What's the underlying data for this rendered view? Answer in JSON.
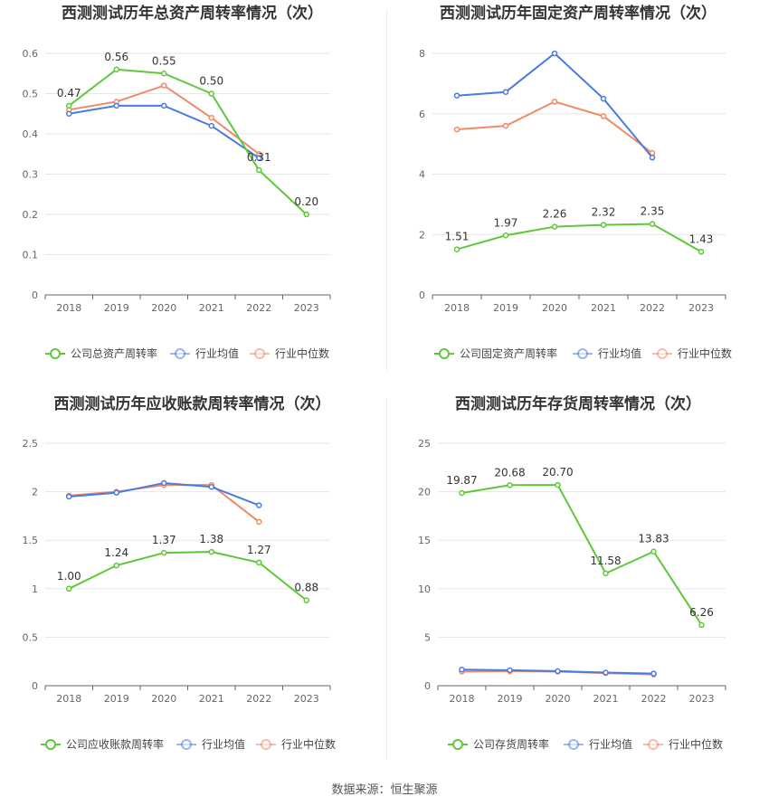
{
  "colors": {
    "company": "#5ec83a",
    "avg": "#4a7be0",
    "median": "#f08a66"
  },
  "legend": {
    "avg": "行业均值",
    "median": "行业中位数"
  },
  "source": "数据来源：恒生聚源",
  "chart_data": [
    {
      "type": "line",
      "title": "西测测试历年总资产周转率情况（次）",
      "legend_company": "公司总资产周转率",
      "x": [
        "2018",
        "2019",
        "2020",
        "2021",
        "2022",
        "2023"
      ],
      "ylim": [
        0,
        0.6
      ],
      "yticks": [
        "0",
        "0.1",
        "0.2",
        "0.3",
        "0.4",
        "0.5",
        "0.6"
      ],
      "series": [
        {
          "name": "公司总资产周转率",
          "values": [
            0.47,
            0.56,
            0.55,
            0.5,
            0.31,
            0.2
          ],
          "labels": [
            "0.47",
            "0.56",
            "0.55",
            "0.50",
            "0.31",
            "0.20"
          ]
        },
        {
          "name": "行业均值",
          "values": [
            0.45,
            0.47,
            0.47,
            0.42,
            0.34,
            null
          ]
        },
        {
          "name": "行业中位数",
          "values": [
            0.46,
            0.48,
            0.52,
            0.44,
            0.35,
            null
          ]
        }
      ]
    },
    {
      "type": "line",
      "title": "西测测试历年固定资产周转率情况（次）",
      "legend_company": "公司固定资产周转率",
      "x": [
        "2018",
        "2019",
        "2020",
        "2021",
        "2022",
        "2023"
      ],
      "ylim": [
        0,
        8
      ],
      "yticks": [
        "0",
        "2",
        "4",
        "6",
        "8"
      ],
      "series": [
        {
          "name": "公司固定资产周转率",
          "values": [
            1.51,
            1.97,
            2.26,
            2.32,
            2.35,
            1.43
          ],
          "labels": [
            "1.51",
            "1.97",
            "2.26",
            "2.32",
            "2.35",
            "1.43"
          ]
        },
        {
          "name": "行业均值",
          "values": [
            6.6,
            6.72,
            8.0,
            6.5,
            4.55,
            null
          ]
        },
        {
          "name": "行业中位数",
          "values": [
            5.48,
            5.6,
            6.4,
            5.92,
            4.7,
            null
          ]
        }
      ]
    },
    {
      "type": "line",
      "title": "西测测试历年应收账款周转率情况（次）",
      "legend_company": "公司应收账款周转率",
      "x": [
        "2018",
        "2019",
        "2020",
        "2021",
        "2022",
        "2023"
      ],
      "ylim": [
        0,
        2.5
      ],
      "yticks": [
        "0",
        "0.5",
        "1",
        "1.5",
        "2",
        "2.5"
      ],
      "series": [
        {
          "name": "公司应收账款周转率",
          "values": [
            1.0,
            1.24,
            1.37,
            1.38,
            1.27,
            0.88
          ],
          "labels": [
            "1.00",
            "1.24",
            "1.37",
            "1.38",
            "1.27",
            "0.88"
          ]
        },
        {
          "name": "行业均值",
          "values": [
            1.95,
            1.99,
            2.09,
            2.05,
            1.86,
            null
          ]
        },
        {
          "name": "行业中位数",
          "values": [
            1.96,
            2.0,
            2.07,
            2.07,
            1.69,
            null
          ]
        }
      ]
    },
    {
      "type": "line",
      "title": "西测测试历年存货周转率情况（次）",
      "legend_company": "公司存货周转率",
      "x": [
        "2018",
        "2019",
        "2020",
        "2021",
        "2022",
        "2023"
      ],
      "ylim": [
        0,
        25
      ],
      "yticks": [
        "0",
        "5",
        "10",
        "15",
        "20",
        "25"
      ],
      "series": [
        {
          "name": "公司存货周转率",
          "values": [
            19.87,
            20.68,
            20.7,
            11.58,
            13.83,
            6.26
          ],
          "labels": [
            "19.87",
            "20.68",
            "20.70",
            "11.58",
            "13.83",
            "6.26"
          ]
        },
        {
          "name": "行业均值",
          "values": [
            1.65,
            1.6,
            1.5,
            1.35,
            1.25,
            null
          ]
        },
        {
          "name": "行业中位数",
          "values": [
            1.45,
            1.5,
            1.45,
            1.3,
            1.15,
            null
          ]
        }
      ]
    }
  ]
}
